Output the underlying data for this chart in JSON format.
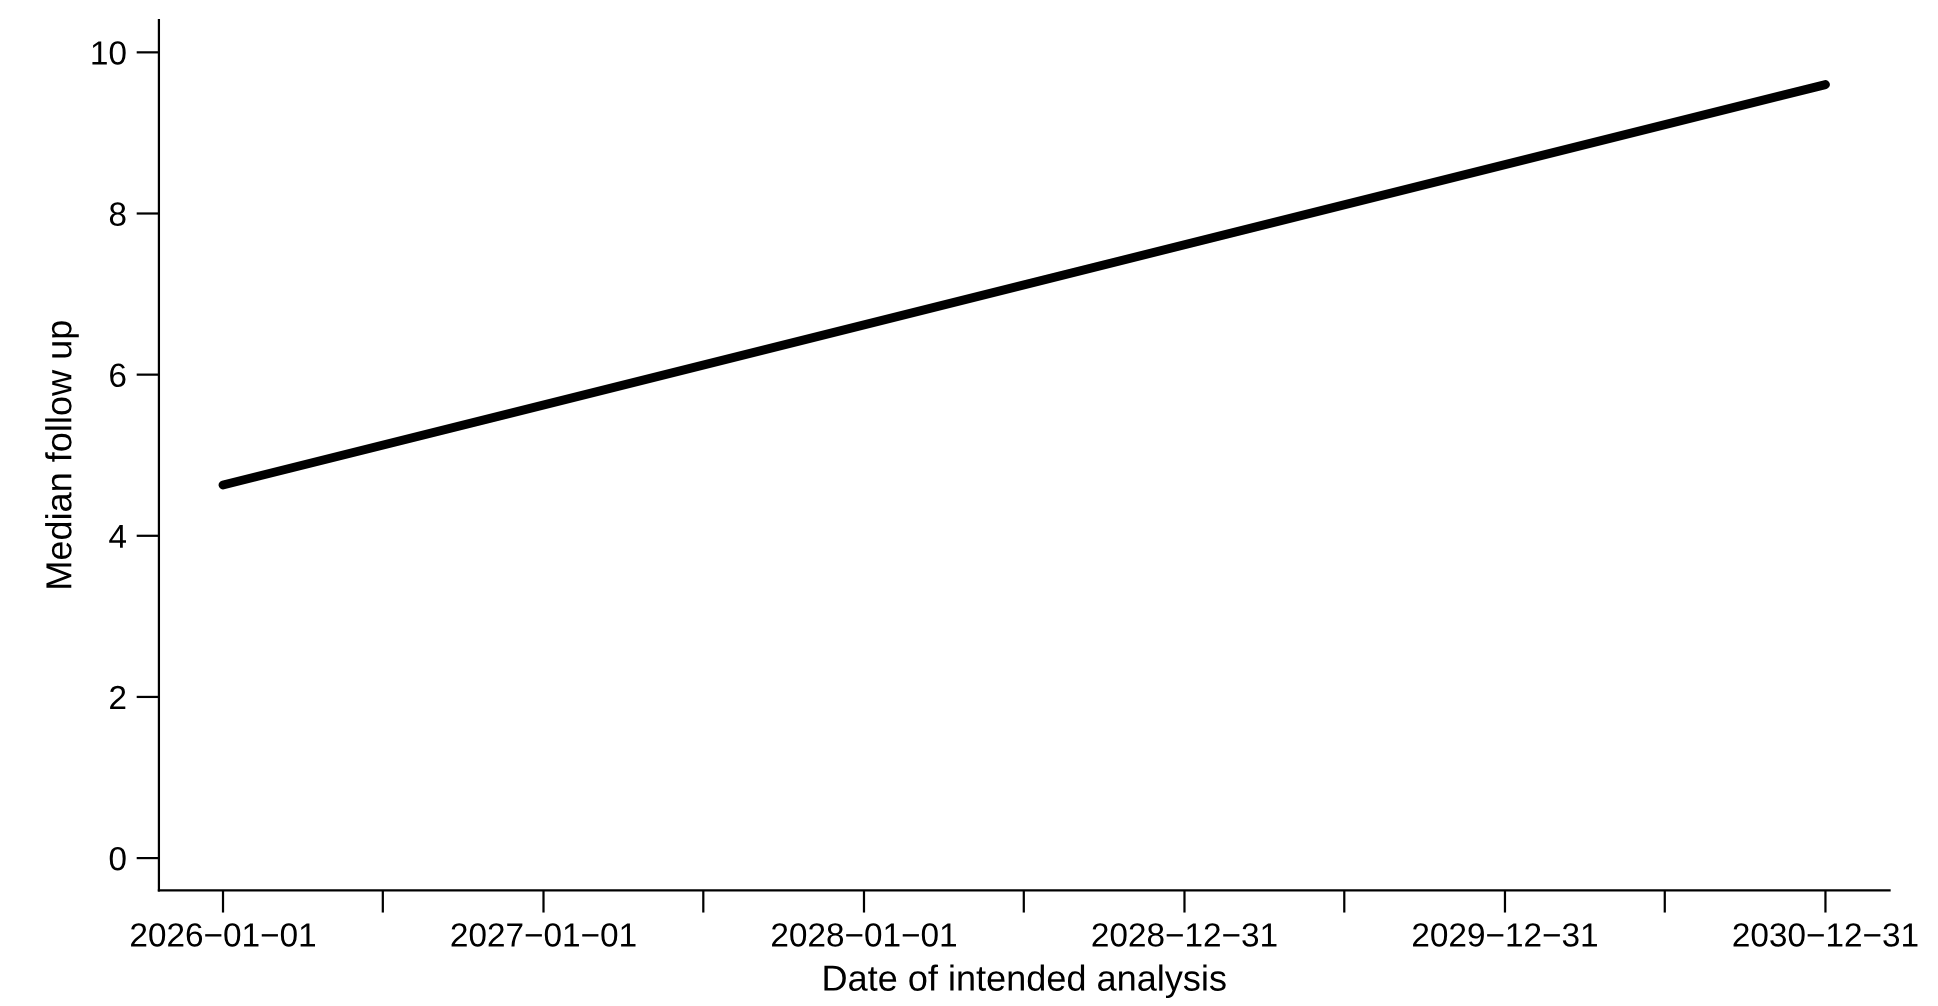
{
  "chart_data": {
    "type": "line",
    "xlabel": "Date of intended analysis",
    "ylabel": "Median follow up",
    "x": [
      "2026-01-01",
      "2030-12-31"
    ],
    "series": [
      {
        "color": "#000000",
        "values": [
          4.63,
          9.6
        ]
      }
    ],
    "xlim": [
      "2025-10-20",
      "2031-03-14"
    ],
    "ylim": [
      -0.4,
      10.4
    ],
    "xticks": [
      {
        "value": "2026-01-01",
        "label": "2026−01−01"
      },
      {
        "value": "2026-07-02",
        "label": null
      },
      {
        "value": "2027-01-01",
        "label": "2027−01−01"
      },
      {
        "value": "2027-07-02",
        "label": null
      },
      {
        "value": "2028-01-01",
        "label": "2028−01−01"
      },
      {
        "value": "2028-07-01",
        "label": null
      },
      {
        "value": "2028-12-31",
        "label": "2028−12−31"
      },
      {
        "value": "2029-07-01",
        "label": null
      },
      {
        "value": "2029-12-31",
        "label": "2029−12−31"
      },
      {
        "value": "2030-07-01",
        "label": null
      },
      {
        "value": "2030-12-31",
        "label": "2030−12−31"
      }
    ],
    "yticks": [
      0,
      2,
      4,
      6,
      8,
      10
    ],
    "grid": false,
    "legend": false,
    "marker": "none",
    "line_style": "solid"
  }
}
